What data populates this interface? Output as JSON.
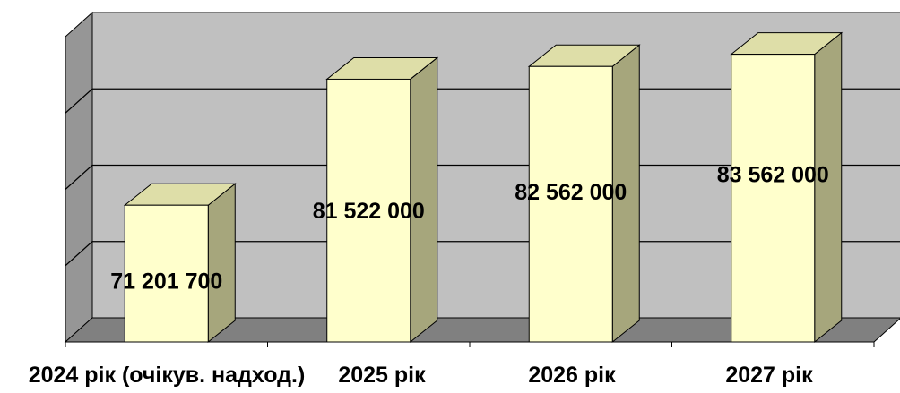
{
  "chart_data": {
    "type": "bar",
    "style": "3d-column",
    "categories": [
      "2024 рік (очікув. надход.)",
      "2025 рік",
      "2026 рік",
      "2027 рік"
    ],
    "values": [
      71201700,
      81522000,
      82562000,
      83562000
    ],
    "value_labels": [
      "71 201 700",
      "81 522 000",
      "82 562 000",
      "83 562 000"
    ],
    "title": "",
    "xlabel": "",
    "ylabel": "",
    "ylim": [
      60000000,
      85000000
    ],
    "gridlines": 4,
    "grid": true,
    "legend": "none",
    "colors": {
      "bar_front": "#ffffcc",
      "bar_top": "#dedea8",
      "bar_side": "#a6a67c",
      "back_wall": "#c0c0c0",
      "side_wall": "#969696",
      "floor": "#808080",
      "gridline": "#000000"
    }
  }
}
